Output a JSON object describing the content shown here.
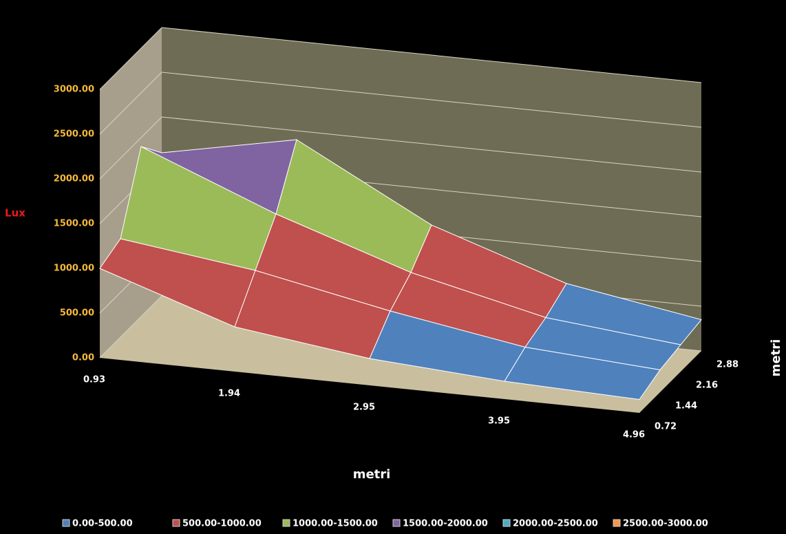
{
  "chart_data": {
    "type": "surface",
    "z_label": "Lux",
    "x_label": "metri",
    "depth_label": "metri",
    "categories": [
      "0.93",
      "1.94",
      "2.95",
      "3.95",
      "4.96"
    ],
    "series": [
      {
        "name": "0.72",
        "values": [
          1000,
          500,
          300,
          200,
          150
        ]
      },
      {
        "name": "1.44",
        "values": [
          1100,
          900,
          600,
          350,
          250
        ]
      },
      {
        "name": "2.16",
        "values": [
          1900,
          1300,
          800,
          450,
          300
        ]
      },
      {
        "name": "2.88",
        "values": [
          1600,
          1900,
          1100,
          600,
          350
        ]
      }
    ],
    "zlim": [
      0,
      3000
    ],
    "zticks": [
      {
        "value": 0,
        "label": "0.00"
      },
      {
        "value": 500,
        "label": "500.00"
      },
      {
        "value": 1000,
        "label": "1000.00"
      },
      {
        "value": 1500,
        "label": "1500.00"
      },
      {
        "value": 2000,
        "label": "2000.00"
      },
      {
        "value": 2500,
        "label": "2500.00"
      },
      {
        "value": 3000,
        "label": "3000.00"
      }
    ],
    "bands": [
      {
        "name": "0.00-500.00",
        "color": "#4f81bd",
        "range": [
          0,
          500
        ]
      },
      {
        "name": "500.00-1000.00",
        "color": "#c0504d",
        "range": [
          500,
          1000
        ]
      },
      {
        "name": "1000.00-1500.00",
        "color": "#9bbb59",
        "range": [
          1000,
          1500
        ]
      },
      {
        "name": "1500.00-2000.00",
        "color": "#8064a2",
        "range": [
          1500,
          2000
        ]
      },
      {
        "name": "2000.00-2500.00",
        "color": "#4bacc6",
        "range": [
          2000,
          2500
        ]
      },
      {
        "name": "2500.00-3000.00",
        "color": "#f79646",
        "range": [
          2500,
          3000
        ]
      }
    ]
  }
}
